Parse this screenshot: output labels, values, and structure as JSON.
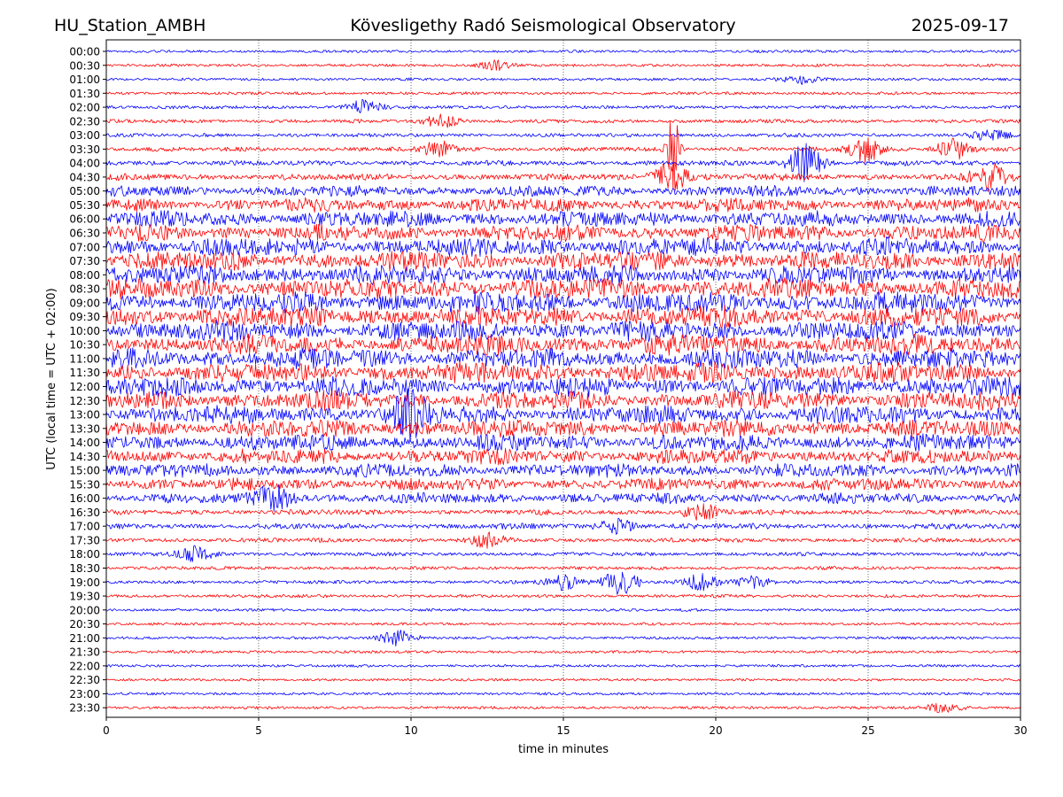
{
  "header": {
    "station": "HU_Station_AMBH",
    "observatory": "Kövesligethy Radó Seismological Observatory",
    "date": "2025-09-17"
  },
  "chart_data": {
    "type": "line",
    "subtype": "helicorder",
    "title": "Kövesligethy Radó Seismological Observatory",
    "xlabel": "time in minutes",
    "ylabel": "UTC (local time = UTC + 02:00)",
    "xlim": [
      0,
      30
    ],
    "x_ticks": [
      "0",
      "5",
      "10",
      "15",
      "20",
      "25",
      "30"
    ],
    "grid": "vertical dotted lines at 5-minute ticks",
    "colors": [
      "#0000ff",
      "#ff0000"
    ],
    "row_labels": [
      "00:00",
      "00:30",
      "01:00",
      "01:30",
      "02:00",
      "02:30",
      "03:00",
      "03:30",
      "04:00",
      "04:30",
      "05:00",
      "05:30",
      "06:00",
      "06:30",
      "07:00",
      "07:30",
      "08:00",
      "08:30",
      "09:00",
      "09:30",
      "10:00",
      "10:30",
      "11:00",
      "11:30",
      "12:00",
      "12:30",
      "13:00",
      "13:30",
      "14:00",
      "14:30",
      "15:00",
      "15:30",
      "16:00",
      "16:30",
      "17:00",
      "17:30",
      "18:00",
      "18:30",
      "19:00",
      "19:30",
      "20:00",
      "20:30",
      "21:00",
      "21:30",
      "22:00",
      "22:30",
      "23:00",
      "23:30"
    ],
    "row_noise_level": [
      0.04,
      0.05,
      0.05,
      0.06,
      0.08,
      0.1,
      0.1,
      0.14,
      0.17,
      0.25,
      0.45,
      0.6,
      0.7,
      0.75,
      0.85,
      0.9,
      0.9,
      0.95,
      1.0,
      1.0,
      0.95,
      0.95,
      0.95,
      0.95,
      0.9,
      0.85,
      0.85,
      0.8,
      0.75,
      0.7,
      0.6,
      0.55,
      0.45,
      0.18,
      0.2,
      0.13,
      0.1,
      0.08,
      0.08,
      0.07,
      0.05,
      0.05,
      0.05,
      0.05,
      0.04,
      0.04,
      0.04,
      0.05
    ],
    "events": [
      {
        "row": "00:30",
        "minute": 12.8,
        "strength": 0.35
      },
      {
        "row": "01:00",
        "minute": 22.7,
        "strength": 0.35
      },
      {
        "row": "02:00",
        "minute": 8.5,
        "strength": 0.55
      },
      {
        "row": "02:30",
        "minute": 11.0,
        "strength": 0.5
      },
      {
        "row": "03:00",
        "minute": 29.0,
        "strength": 0.4
      },
      {
        "row": "03:30",
        "minute": 18.6,
        "strength": 3.2
      },
      {
        "row": "03:30",
        "minute": 10.9,
        "strength": 0.6
      },
      {
        "row": "03:30",
        "minute": 24.9,
        "strength": 1.0
      },
      {
        "row": "03:30",
        "minute": 27.8,
        "strength": 0.8
      },
      {
        "row": "04:00",
        "minute": 22.9,
        "strength": 1.5
      },
      {
        "row": "04:30",
        "minute": 18.5,
        "strength": 1.2
      },
      {
        "row": "04:30",
        "minute": 29.0,
        "strength": 1.0
      },
      {
        "row": "13:00",
        "minute": 10.0,
        "strength": 1.6
      },
      {
        "row": "16:00",
        "minute": 5.5,
        "strength": 0.9
      },
      {
        "row": "16:30",
        "minute": 19.5,
        "strength": 0.6
      },
      {
        "row": "17:00",
        "minute": 16.8,
        "strength": 0.6
      },
      {
        "row": "17:30",
        "minute": 12.5,
        "strength": 0.5
      },
      {
        "row": "18:00",
        "minute": 2.9,
        "strength": 0.6
      },
      {
        "row": "19:00",
        "minute": 16.9,
        "strength": 1.0
      },
      {
        "row": "19:00",
        "minute": 15.0,
        "strength": 0.6
      },
      {
        "row": "19:00",
        "minute": 19.5,
        "strength": 0.6
      },
      {
        "row": "19:00",
        "minute": 21.2,
        "strength": 0.4
      },
      {
        "row": "21:00",
        "minute": 9.6,
        "strength": 0.6
      },
      {
        "row": "23:30",
        "minute": 27.5,
        "strength": 0.35
      }
    ]
  }
}
